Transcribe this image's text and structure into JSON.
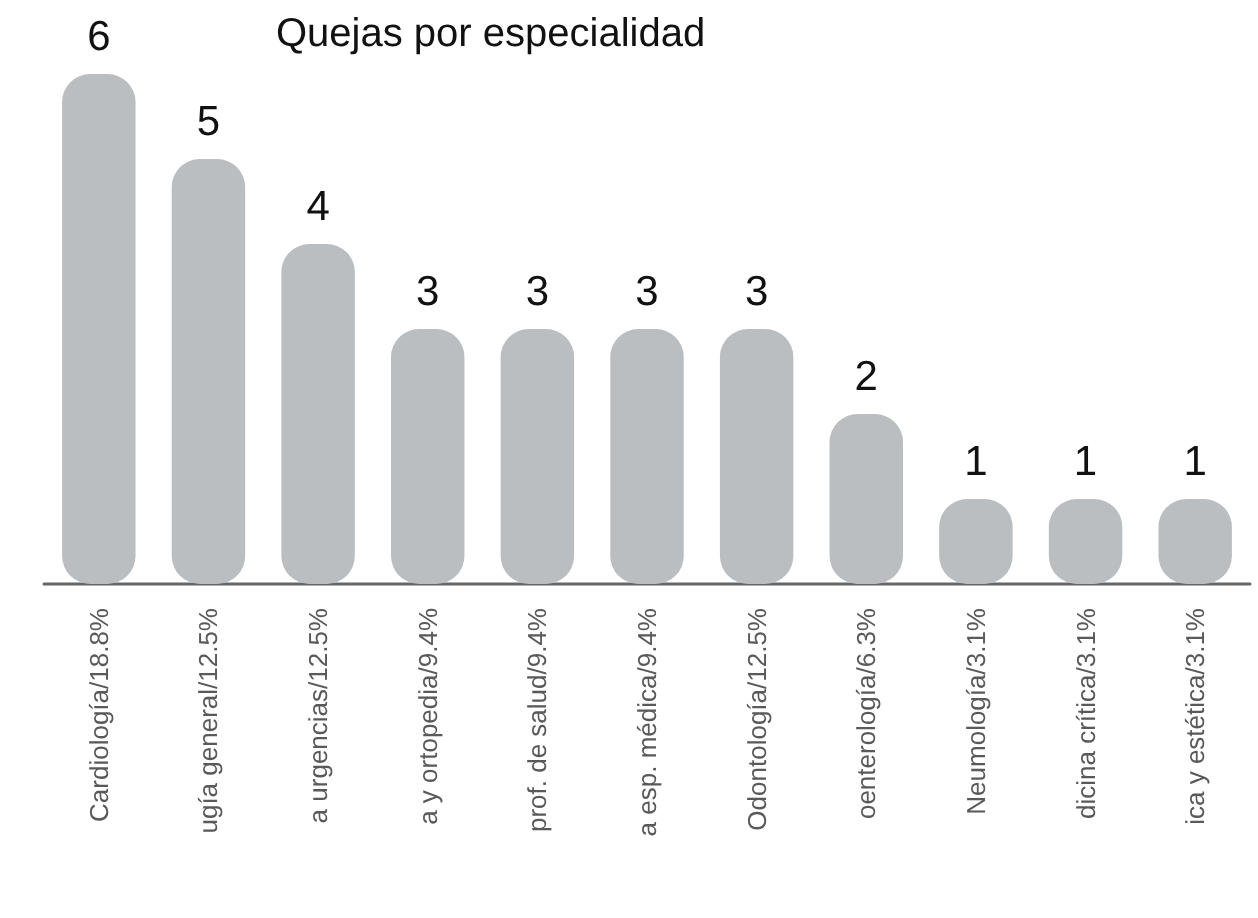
{
  "chart_data": {
    "type": "bar",
    "title": "Quejas por especialidad",
    "categories": [
      "Cardiología/18.8%",
      "ugía general/12.5%",
      "a urgencias/12.5%",
      "a y ortopedia/9.4%",
      "prof. de salud/9.4%",
      "a esp. médica/9.4%",
      "Odontología/12.5%",
      "oenterología/6.3%",
      "Neumología/3.1%",
      "dicina crítica/3.1%",
      "ica y estética/3.1%"
    ],
    "values": [
      6,
      5,
      4,
      3,
      3,
      3,
      3,
      2,
      1,
      1,
      1
    ],
    "color": "#bbbec1",
    "data_labels": true
  }
}
